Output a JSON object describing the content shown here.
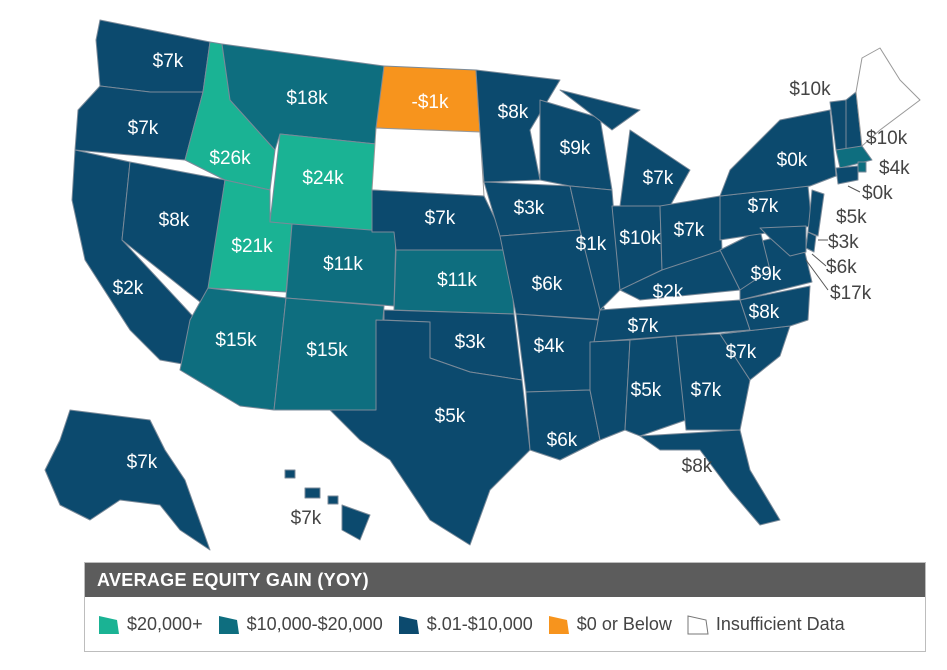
{
  "colors": {
    "high": "#1ab394",
    "mid": "#0e6e7f",
    "low": "#0c4a6e",
    "negative": "#f7941d",
    "none": "#ffffff",
    "border": "#7a8a99"
  },
  "legend": {
    "title": "AVERAGE EQUITY GAIN (YOY)",
    "items": [
      {
        "label": "$20,000+",
        "color": "#1ab394"
      },
      {
        "label": "$10,000-$20,000",
        "color": "#0e6e7f"
      },
      {
        "label": "$.01-$10,000",
        "color": "#0c4a6e"
      },
      {
        "label": "$0 or Below",
        "color": "#f7941d"
      },
      {
        "label": "Insufficient Data",
        "color": "#ffffff"
      }
    ]
  },
  "states": {
    "WA": "$7k",
    "OR": "$7k",
    "CA": "$2k",
    "NV": "$8k",
    "ID": "$26k",
    "MT": "$18k",
    "WY": "$24k",
    "UT": "$21k",
    "CO": "$11k",
    "AZ": "$15k",
    "NM": "$15k",
    "ND": "-$1k",
    "NE": "$7k",
    "KS": "$11k",
    "OK": "$3k",
    "TX": "$5k",
    "MN": "$8k",
    "IA": "$3k",
    "MO": "$6k",
    "AR": "$4k",
    "LA": "$6k",
    "WI": "$9k",
    "IL": "$1k",
    "MI": "$7k",
    "IN": "$10k",
    "OH": "$7k",
    "KY": "$2k",
    "TN": "$7k",
    "MS": "",
    "AL": "$5k",
    "GA": "$7k",
    "FL": "$8k",
    "SC": "$7k",
    "NC": "$8k",
    "VA": "$9k",
    "WV": "",
    "PA": "$7k",
    "NY": "$0k",
    "VT": "$10k",
    "NH": "",
    "MA": "$10k",
    "RI": "$4k",
    "CT": "$0k",
    "NJ": "$5k",
    "DE": "$3k",
    "MD": "$6k",
    "DC": "$17k",
    "AK": "$7k",
    "HI": "$7k",
    "SD": "",
    "ME": ""
  }
}
